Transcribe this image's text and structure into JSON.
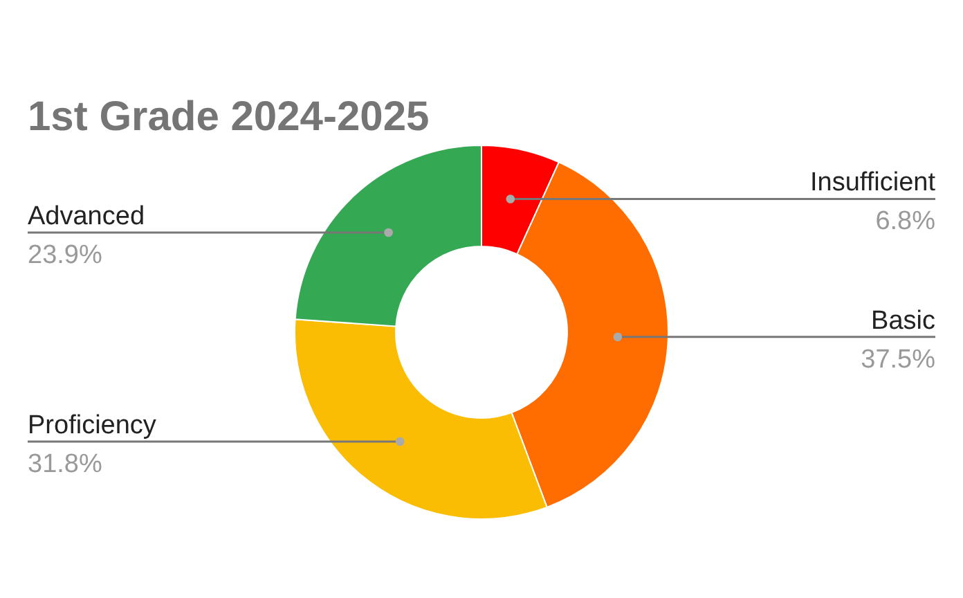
{
  "chart_data": {
    "type": "donut",
    "title": "1st Grade 2024-2025",
    "categories": [
      "Insufficient",
      "Basic",
      "Proficiency",
      "Advanced"
    ],
    "values": [
      6.8,
      37.5,
      31.8,
      23.9
    ],
    "colors": [
      "#ff0000",
      "#ff6d01",
      "#fbbc04",
      "#34a853"
    ],
    "value_labels": [
      "6.8%",
      "37.5%",
      "31.8%",
      "23.9%"
    ]
  }
}
